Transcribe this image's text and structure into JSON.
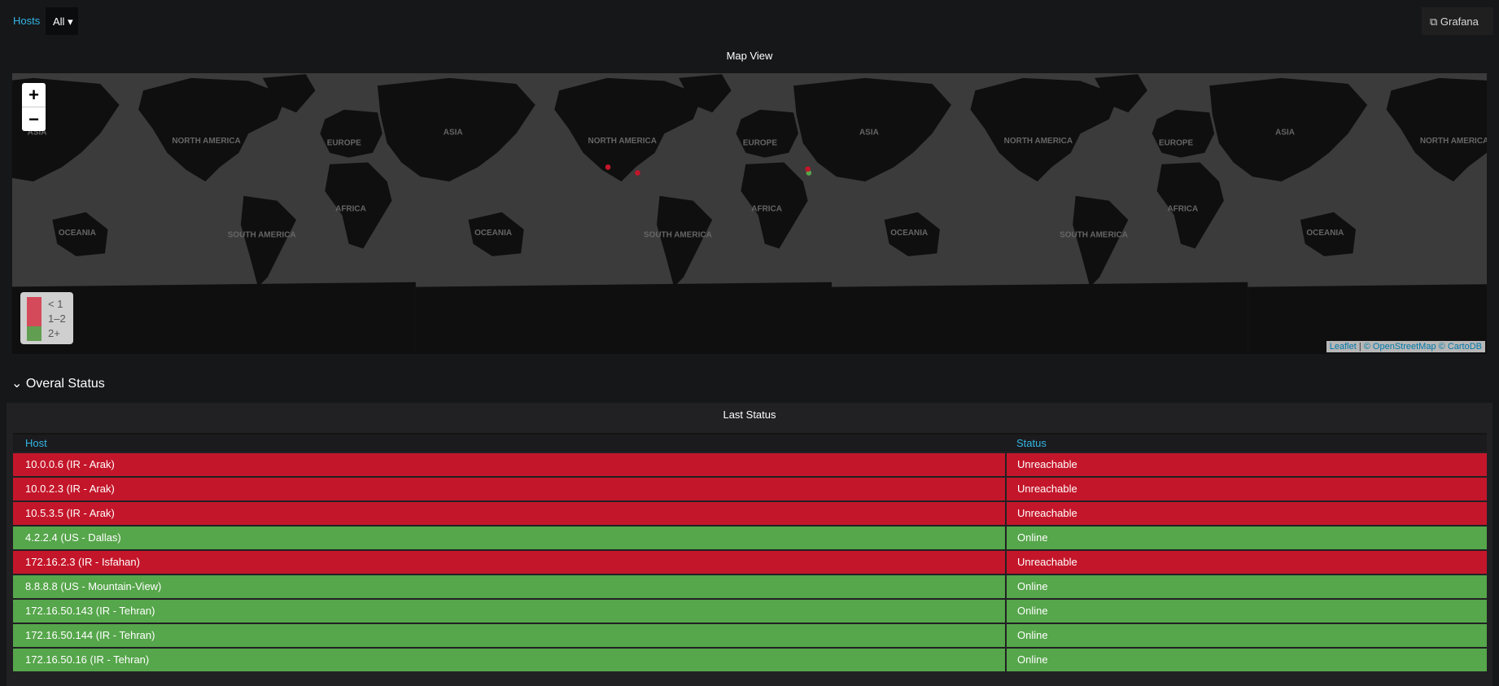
{
  "toolbar": {
    "variable_label": "Hosts",
    "variable_value": "All",
    "link": "Grafana"
  },
  "map_panel": {
    "title": "Map View",
    "zoom_in": "+",
    "zoom_out": "−",
    "continents": [
      "NORTH AMERICA",
      "EUROPE",
      "ASIA",
      "AFRICA",
      "SOUTH AMERICA",
      "OCEANIA"
    ],
    "legend": [
      {
        "label": "< 1",
        "color": "#d44a5a"
      },
      {
        "label": "1–2",
        "color": "#d44a5a"
      },
      {
        "label": "2+",
        "color": "#629e51"
      }
    ],
    "attribution": {
      "leaflet": "Leaflet",
      "sep": "|",
      "osm": "© OpenStreetMap",
      "carto": "© CartoDB"
    }
  },
  "row": {
    "title": "Overal Status"
  },
  "table": {
    "title": "Last Status",
    "columns": [
      "Host",
      "Status"
    ],
    "status_colors": {
      "Unreachable": "#c4162a",
      "Online": "#56a64b"
    },
    "rows": [
      [
        "10.0.0.6 (IR - Arak)",
        "Unreachable"
      ],
      [
        "10.0.2.3 (IR - Arak)",
        "Unreachable"
      ],
      [
        "10.5.3.5 (IR - Arak)",
        "Unreachable"
      ],
      [
        "4.2.2.4 (US - Dallas)",
        "Online"
      ],
      [
        "172.16.2.3 (IR - Isfahan)",
        "Unreachable"
      ],
      [
        "8.8.8.8 (US - Mountain-View)",
        "Online"
      ],
      [
        "172.16.50.143 (IR - Tehran)",
        "Online"
      ],
      [
        "172.16.50.144 (IR - Tehran)",
        "Online"
      ],
      [
        "172.16.50.16 (IR - Tehran)",
        "Online"
      ]
    ]
  }
}
